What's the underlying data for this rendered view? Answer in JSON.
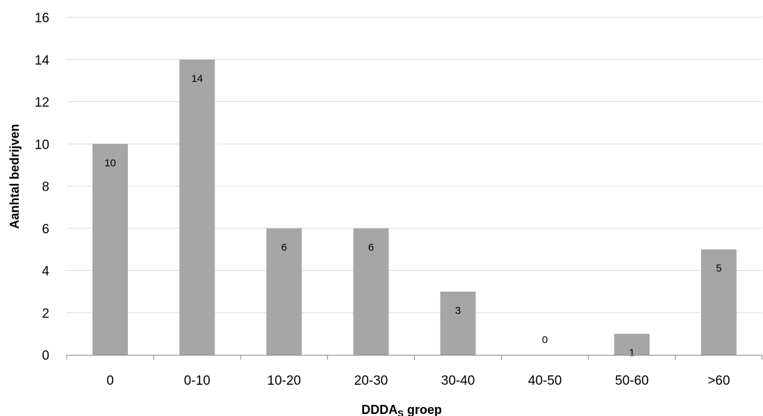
{
  "chart_data": {
    "type": "bar",
    "categories": [
      "0",
      "0-10",
      "10-20",
      "20-30",
      "30-40",
      "40-50",
      "50-60",
      ">60"
    ],
    "values": [
      10,
      14,
      6,
      6,
      3,
      0,
      1,
      5
    ],
    "data_labels": [
      "10",
      "14",
      "6",
      "6",
      "3",
      "0",
      "1",
      "5"
    ],
    "ylabel": "Aanhtal bedrijven",
    "xlabel_main": "DDDA",
    "xlabel_sub": "S",
    "xlabel_rest": " groep",
    "ylim": [
      0,
      16
    ],
    "yticks": [
      0,
      2,
      4,
      6,
      8,
      10,
      12,
      14,
      16
    ],
    "ytick_labels": [
      "0",
      "2",
      "4",
      "6",
      "8",
      "10",
      "12",
      "14",
      "16"
    ],
    "grid": true,
    "legend": "none",
    "bar_color": "#a6a6a6",
    "grid_color": "#d9d9d9"
  }
}
